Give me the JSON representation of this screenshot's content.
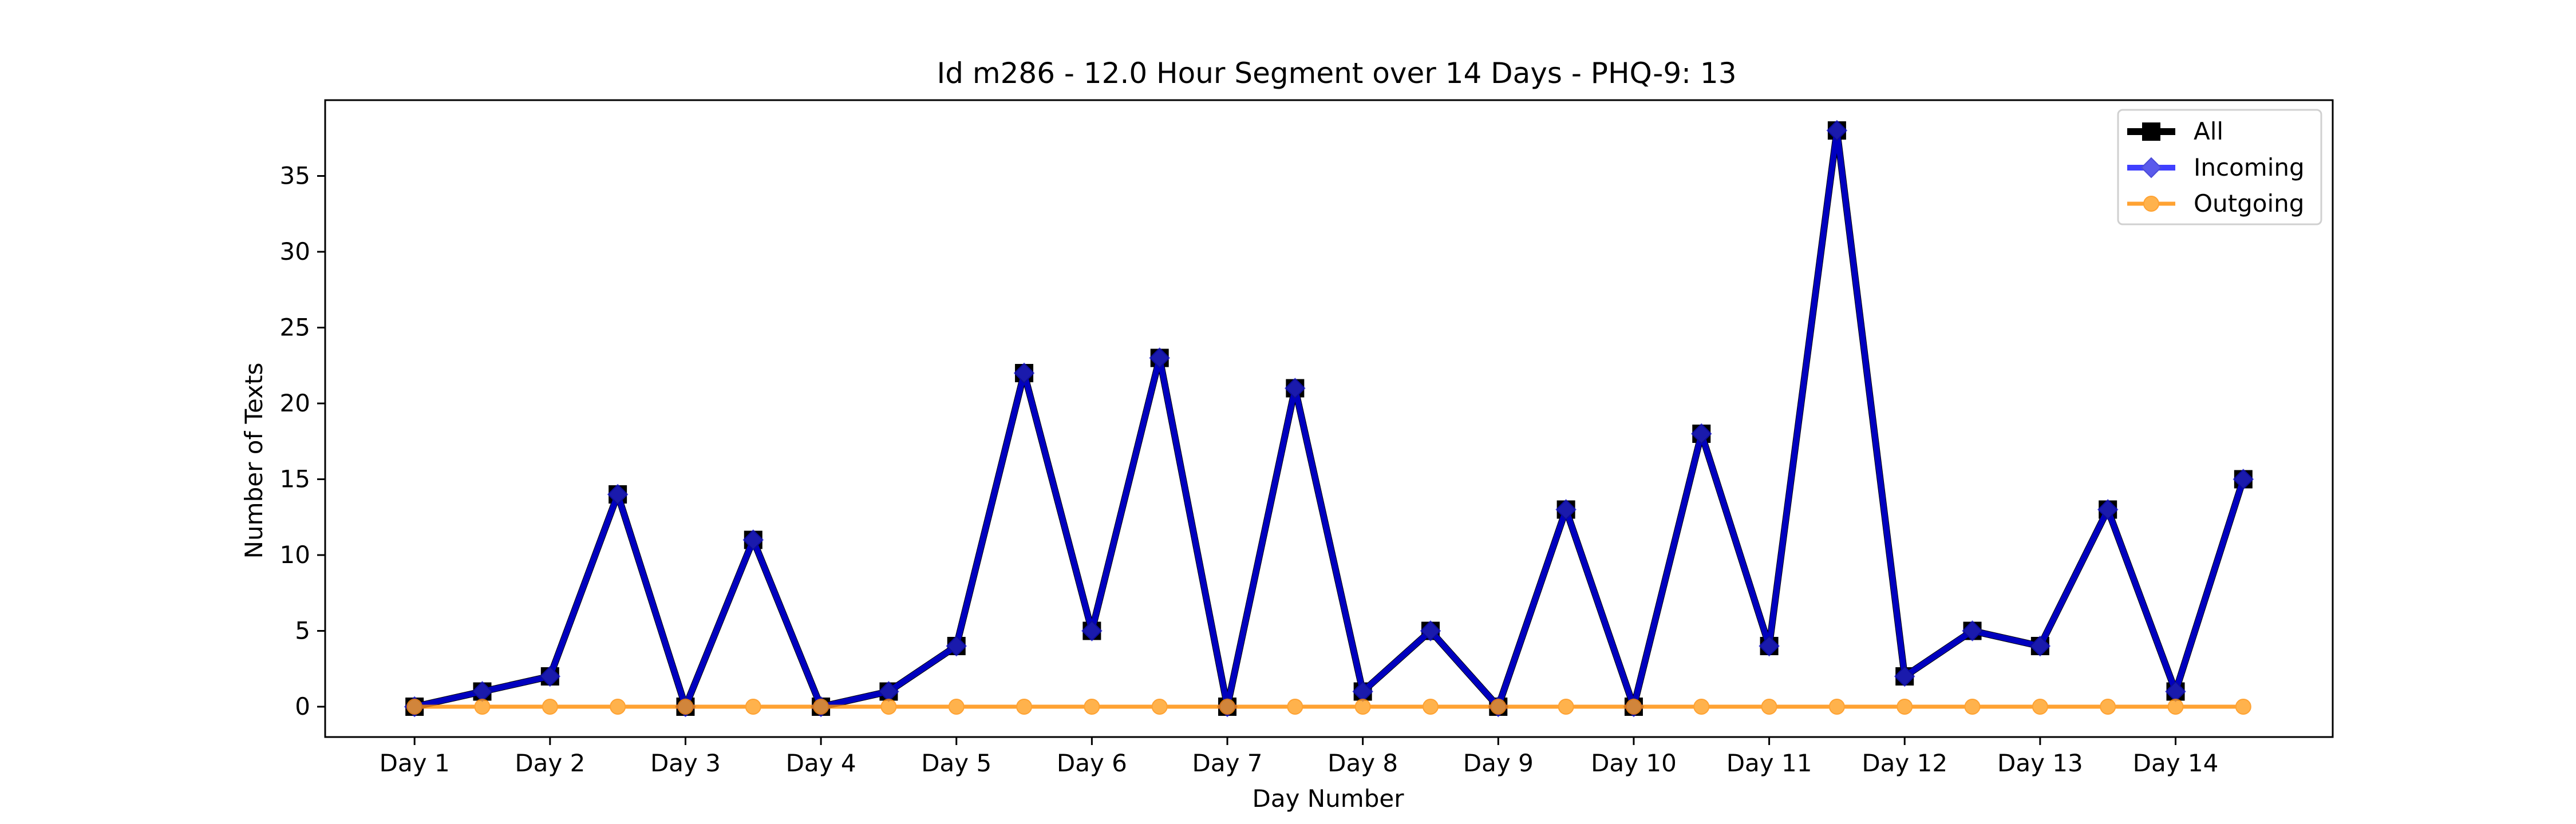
{
  "chart_data": {
    "type": "line",
    "title": "Id m286 - 12.0 Hour Segment over 14 Days - PHQ-9: 13",
    "xlabel": "Day Number",
    "ylabel": "Number of Texts",
    "ylim": [
      -2,
      40
    ],
    "yticks": [
      0,
      5,
      10,
      15,
      20,
      25,
      30,
      35
    ],
    "categories": [
      "Day 1",
      "Day 2",
      "Day 3",
      "Day 4",
      "Day 5",
      "Day 6",
      "Day 7",
      "Day 8",
      "Day 9",
      "Day 10",
      "Day 11",
      "Day 12",
      "Day 13",
      "Day 14"
    ],
    "x": [
      0,
      0.5,
      1,
      1.5,
      2,
      2.5,
      3,
      3.5,
      4,
      4.5,
      5,
      5.5,
      6,
      6.5,
      7,
      7.5,
      8,
      8.5,
      9,
      9.5,
      10,
      10.5,
      11,
      11.5,
      12,
      12.5,
      13,
      13.5
    ],
    "xlim": [
      -0.66,
      14.16
    ],
    "grid": false,
    "legend_position": "top-right",
    "series": [
      {
        "name": "All",
        "color": "#000000",
        "marker": "square",
        "values": [
          0,
          1,
          2,
          14,
          0,
          11,
          0,
          1,
          4,
          22,
          5,
          23,
          0,
          21,
          1,
          5,
          0,
          13,
          0,
          18,
          4,
          38,
          2,
          5,
          4,
          13,
          1,
          15
        ]
      },
      {
        "name": "Incoming",
        "color": "#0000ff",
        "marker": "diamond",
        "values": [
          0,
          1,
          2,
          14,
          0,
          11,
          0,
          1,
          4,
          22,
          5,
          23,
          0,
          21,
          1,
          5,
          0,
          13,
          0,
          18,
          4,
          38,
          2,
          5,
          4,
          13,
          1,
          15
        ]
      },
      {
        "name": "Outgoing",
        "color": "#ff8c00",
        "marker": "circle",
        "values": [
          0,
          0,
          0,
          0,
          0,
          0,
          0,
          0,
          0,
          0,
          0,
          0,
          0,
          0,
          0,
          0,
          0,
          0,
          0,
          0,
          0,
          0,
          0,
          0,
          0,
          0,
          0,
          0
        ]
      }
    ]
  }
}
